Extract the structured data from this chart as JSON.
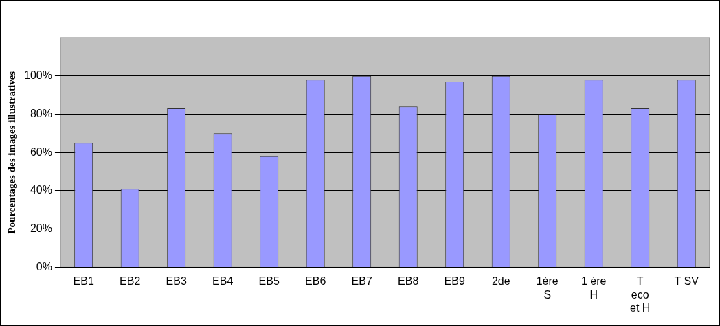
{
  "chart_data": {
    "type": "bar",
    "ylabel": "Pourcentages des images illustratives",
    "categories": [
      "EB1",
      "EB2",
      "EB3",
      "EB4",
      "EB5",
      "EB6",
      "EB7",
      "EB8",
      "EB9",
      "2de",
      "1ère\nS",
      "1 ère\nH",
      "T\neco\net H",
      "T SV"
    ],
    "values": [
      65,
      41,
      83,
      70,
      58,
      98,
      100,
      84,
      97,
      100,
      80,
      98,
      83,
      98
    ],
    "color": "#9999ff",
    "ylim": [
      0,
      120
    ],
    "yticks": [
      {
        "value": 0,
        "label": "0%"
      },
      {
        "value": 20,
        "label": "20%"
      },
      {
        "value": 40,
        "label": "40%"
      },
      {
        "value": 60,
        "label": "60%"
      },
      {
        "value": 80,
        "label": "80%"
      },
      {
        "value": 100,
        "label": "100%"
      },
      {
        "value": 120,
        "label": null
      }
    ],
    "grid": "y",
    "legend": false
  }
}
